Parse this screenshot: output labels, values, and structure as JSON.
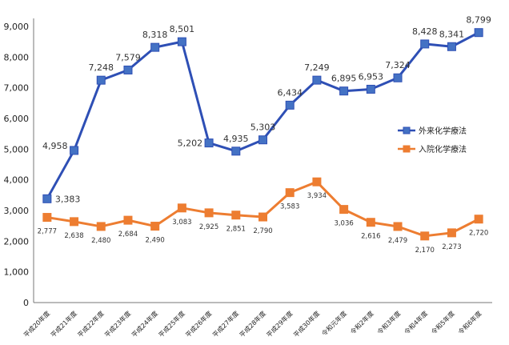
{
  "chart_data": {
    "type": "line",
    "title": "",
    "xlabel": "",
    "ylabel": "",
    "ylim": [
      0,
      9000
    ],
    "yticks": [
      0,
      1000,
      2000,
      3000,
      4000,
      5000,
      6000,
      7000,
      8000,
      9000
    ],
    "ytick_labels": [
      "0",
      "1,000",
      "2,000",
      "3,000",
      "4,000",
      "5,000",
      "6,000",
      "7,000",
      "8,000",
      "9,000"
    ],
    "grid": false,
    "legend_position": "right",
    "categories": [
      "平成20年度",
      "平成21年度",
      "平成22年度",
      "平成23年度",
      "平成24年度",
      "平成25年度",
      "平成26年度",
      "平成27年度",
      "平成28年度",
      "平成29年度",
      "平成30年度",
      "令和元年度",
      "令和2年度",
      "令和3年度",
      "令和4年度",
      "令和5年度",
      "令和6年度"
    ],
    "series": [
      {
        "name": "外来化学療法",
        "color": "#2E4FB5",
        "marker_color": "#4472C4",
        "values": [
          3383,
          4958,
          7248,
          7579,
          8318,
          8501,
          5202,
          4935,
          5303,
          6434,
          7249,
          6895,
          6953,
          7324,
          8428,
          8341,
          8799
        ],
        "labels": [
          "3,383",
          "4,958",
          "7,248",
          "7,579",
          "8,318",
          "8,501",
          "5,202",
          "4,935",
          "5,303",
          "6,434",
          "7,249",
          "6,895",
          "6,953",
          "7,324",
          "8,428",
          "8,341",
          "8,799"
        ]
      },
      {
        "name": "入院化学療法",
        "color": "#ED7D31",
        "marker_color": "#ED7D31",
        "values": [
          2777,
          2638,
          2480,
          2684,
          2490,
          3083,
          2925,
          2851,
          2790,
          3583,
          3934,
          3036,
          2616,
          2479,
          2170,
          2273,
          2720
        ],
        "labels": [
          "2,777",
          "2,638",
          "2,480",
          "2,684",
          "2,490",
          "3,083",
          "2,925",
          "2,851",
          "2,790",
          "3,583",
          "3,934",
          "3,036",
          "2,616",
          "2,479",
          "2,170",
          "2,273",
          "2,720"
        ]
      }
    ]
  }
}
